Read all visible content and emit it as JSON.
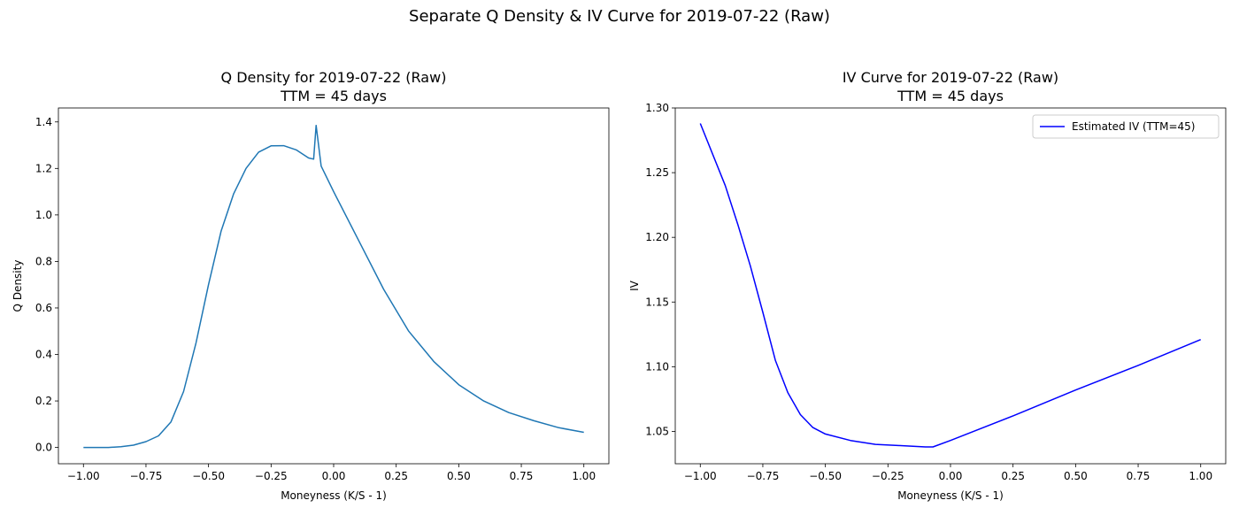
{
  "figure": {
    "title": "Separate Q Density & IV Curve for 2019-07-22 (Raw)"
  },
  "chart_data": [
    {
      "type": "line",
      "title": "Q Density for 2019-07-22 (Raw)",
      "subtitle": "TTM = 45 days",
      "xlabel": "Moneyness (K/S - 1)",
      "ylabel": "Q Density",
      "xlim": [
        -1.1,
        1.1
      ],
      "ylim": [
        -0.07,
        1.46
      ],
      "xticks": [
        -1.0,
        -0.75,
        -0.5,
        -0.25,
        0.0,
        0.25,
        0.5,
        0.75,
        1.0
      ],
      "xtick_labels": [
        "−1.00",
        "−0.75",
        "−0.50",
        "−0.25",
        "0.00",
        "0.25",
        "0.50",
        "0.75",
        "1.00"
      ],
      "yticks": [
        0.0,
        0.2,
        0.4,
        0.6,
        0.8,
        1.0,
        1.2,
        1.4
      ],
      "ytick_labels": [
        "0.0",
        "0.2",
        "0.4",
        "0.6",
        "0.8",
        "1.0",
        "1.2",
        "1.4"
      ],
      "grid": false,
      "series": [
        {
          "color": "#1f77b4",
          "x": [
            -1.0,
            -0.9,
            -0.85,
            -0.8,
            -0.75,
            -0.7,
            -0.65,
            -0.6,
            -0.55,
            -0.5,
            -0.45,
            -0.4,
            -0.35,
            -0.3,
            -0.25,
            -0.2,
            -0.15,
            -0.1,
            -0.08,
            -0.07,
            -0.05,
            0.0,
            0.1,
            0.2,
            0.3,
            0.4,
            0.5,
            0.6,
            0.7,
            0.8,
            0.9,
            1.0
          ],
          "y": [
            0.0,
            0.0,
            0.003,
            0.01,
            0.025,
            0.05,
            0.11,
            0.24,
            0.45,
            0.7,
            0.93,
            1.09,
            1.2,
            1.27,
            1.297,
            1.298,
            1.28,
            1.245,
            1.24,
            1.385,
            1.21,
            1.1,
            0.89,
            0.68,
            0.5,
            0.37,
            0.27,
            0.2,
            0.15,
            0.115,
            0.085,
            0.065
          ]
        }
      ]
    },
    {
      "type": "line",
      "title": "IV Curve for 2019-07-22 (Raw)",
      "subtitle": "TTM = 45 days",
      "xlabel": "Moneyness (K/S - 1)",
      "ylabel": "IV",
      "xlim": [
        -1.1,
        1.1
      ],
      "ylim": [
        1.025,
        1.3
      ],
      "xticks": [
        -1.0,
        -0.75,
        -0.5,
        -0.25,
        0.0,
        0.25,
        0.5,
        0.75,
        1.0
      ],
      "xtick_labels": [
        "−1.00",
        "−0.75",
        "−0.50",
        "−0.25",
        "0.00",
        "0.25",
        "0.50",
        "0.75",
        "1.00"
      ],
      "yticks": [
        1.05,
        1.1,
        1.15,
        1.2,
        1.25,
        1.3
      ],
      "ytick_labels": [
        "1.05",
        "1.10",
        "1.15",
        "1.20",
        "1.25",
        "1.30"
      ],
      "grid": false,
      "legend_position": "top-right",
      "series": [
        {
          "name": "Estimated IV (TTM=45)",
          "color": "#0000ff",
          "x": [
            -1.0,
            -0.9,
            -0.85,
            -0.8,
            -0.75,
            -0.7,
            -0.65,
            -0.6,
            -0.55,
            -0.5,
            -0.4,
            -0.3,
            -0.2,
            -0.1,
            -0.07,
            0.0,
            0.25,
            0.5,
            0.75,
            1.0
          ],
          "y": [
            1.288,
            1.24,
            1.21,
            1.178,
            1.142,
            1.105,
            1.08,
            1.063,
            1.053,
            1.048,
            1.043,
            1.04,
            1.039,
            1.038,
            1.038,
            1.043,
            1.062,
            1.082,
            1.101,
            1.121
          ]
        }
      ]
    }
  ]
}
